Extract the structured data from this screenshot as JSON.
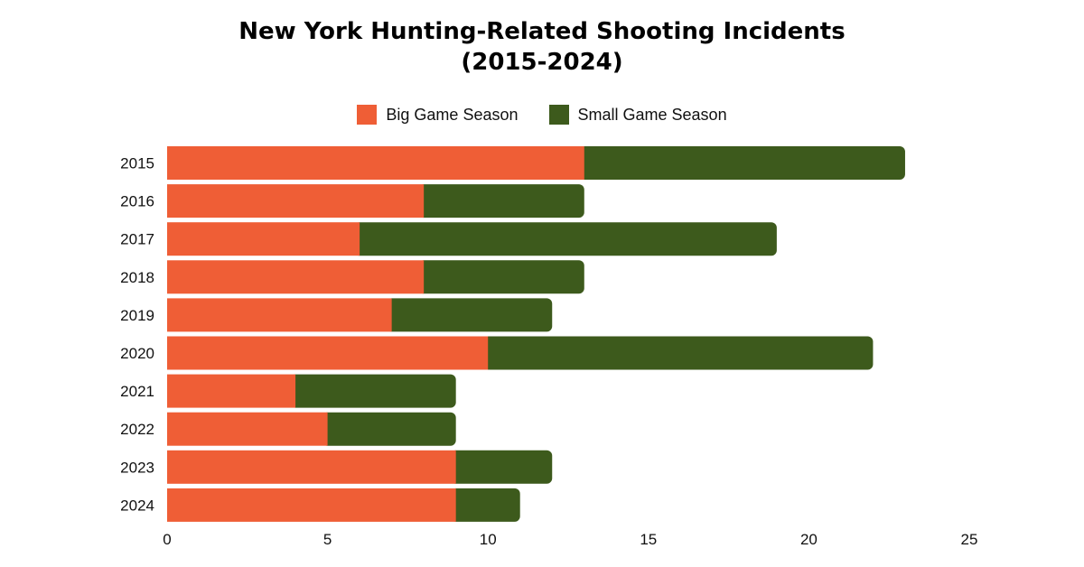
{
  "chart_data": {
    "type": "bar",
    "orientation": "horizontal",
    "stacked": true,
    "title": "New York Hunting-Related Shooting Incidents",
    "subtitle": "(2015-2024)",
    "categories": [
      "2015",
      "2016",
      "2017",
      "2018",
      "2019",
      "2020",
      "2021",
      "2022",
      "2023",
      "2024"
    ],
    "series": [
      {
        "name": "Big Game Season",
        "color": "#ef5e36",
        "values": [
          13,
          8,
          6,
          8,
          7,
          10,
          4,
          5,
          9,
          9
        ]
      },
      {
        "name": "Small Game Season",
        "color": "#3d5a1c",
        "values": [
          10,
          5,
          13,
          5,
          5,
          12,
          5,
          4,
          3,
          2
        ]
      }
    ],
    "xlim": [
      0,
      25
    ],
    "xticks": [
      0,
      5,
      10,
      15,
      20,
      25
    ],
    "grid": false,
    "legend": "top-center"
  }
}
